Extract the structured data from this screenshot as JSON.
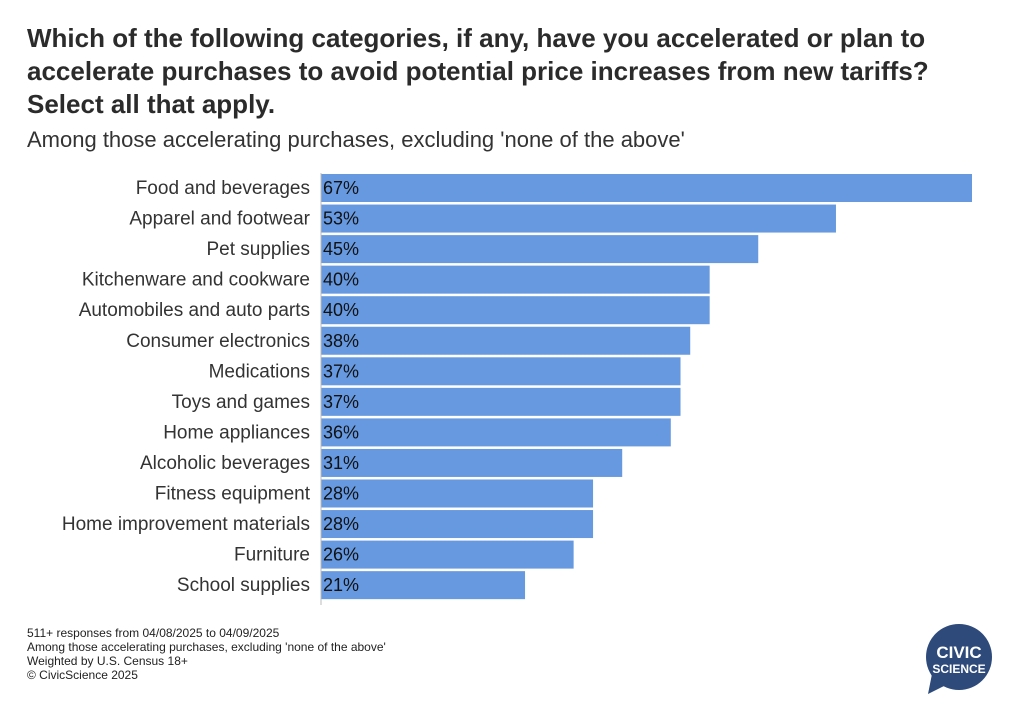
{
  "chart_data": {
    "type": "bar",
    "orientation": "horizontal",
    "title": "Which of the following categories, if any, have you accelerated or plan to accelerate purchases to avoid potential price increases from new tariffs? Select all that apply.",
    "subtitle": "Among those accelerating purchases, excluding 'none of the above'",
    "categories": [
      "Food and beverages",
      "Apparel and footwear",
      "Pet supplies",
      "Kitchenware and cookware",
      "Automobiles and auto parts",
      "Consumer electronics",
      "Medications",
      "Toys and games",
      "Home appliances",
      "Alcoholic beverages",
      "Fitness equipment",
      "Home improvement materials",
      "Furniture",
      "School supplies"
    ],
    "values": [
      67,
      53,
      45,
      40,
      40,
      38,
      37,
      37,
      36,
      31,
      28,
      28,
      26,
      21
    ],
    "value_labels": [
      "67%",
      "53%",
      "45%",
      "40%",
      "40%",
      "38%",
      "37%",
      "37%",
      "36%",
      "31%",
      "28%",
      "28%",
      "26%",
      "21%"
    ],
    "xlim": [
      0,
      67
    ],
    "bar_color": "#6699e0",
    "grid": false,
    "legend": "none"
  },
  "footer": {
    "line1": "511+ responses from 04/08/2025 to 04/09/2025",
    "line2": "Among those accelerating purchases, excluding 'none of the above'",
    "line3": "Weighted by U.S. Census 18+",
    "line4": "© CivicScience 2025"
  },
  "logo": {
    "line1": "CIVIC",
    "line2": "SCIENCE",
    "color": "#2d4a7a"
  }
}
